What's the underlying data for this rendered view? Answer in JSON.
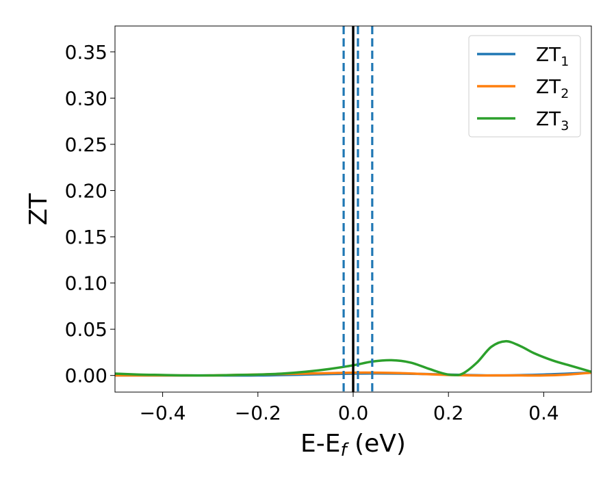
{
  "chart_data": {
    "type": "line",
    "xlabel": "E-E_f (eV)",
    "ylabel": "ZT",
    "xlim": [
      -0.5,
      0.5
    ],
    "ylim": [
      -0.018,
      0.378
    ],
    "x_ticks": [
      -0.4,
      -0.2,
      0.0,
      0.2,
      0.4
    ],
    "x_tick_labels": [
      "−0.4",
      "−0.2",
      "0.0",
      "0.2",
      "0.4"
    ],
    "y_ticks": [
      0.0,
      0.05,
      0.1,
      0.15,
      0.2,
      0.25,
      0.3,
      0.35
    ],
    "y_tick_labels": [
      "0.00",
      "0.05",
      "0.10",
      "0.15",
      "0.20",
      "0.25",
      "0.30",
      "0.35"
    ],
    "grid": false,
    "legend_position": "top-right",
    "series": [
      {
        "name": "ZT1",
        "label_main": "ZT",
        "label_sub": "1",
        "color": "#1f77b4",
        "x": [
          -0.5,
          -0.4,
          -0.3,
          -0.2,
          -0.1,
          0.0,
          0.1,
          0.2,
          0.3,
          0.4,
          0.5
        ],
        "y": [
          0.0,
          0.0,
          0.0,
          0.0,
          0.001,
          0.002,
          0.002,
          0.001,
          0.0,
          0.001,
          0.003
        ]
      },
      {
        "name": "ZT2",
        "label_main": "ZT",
        "label_sub": "2",
        "color": "#ff7f0e",
        "x": [
          -0.5,
          -0.45,
          -0.4,
          -0.35,
          -0.3,
          -0.25,
          -0.2,
          -0.15,
          -0.1,
          -0.05,
          0.0,
          0.05,
          0.1,
          0.15,
          0.2,
          0.25,
          0.3,
          0.35,
          0.4,
          0.45,
          0.5
        ],
        "y": [
          0.0,
          0.0,
          0.0,
          0.0,
          0.0,
          0.0005,
          0.001,
          0.0015,
          0.002,
          0.0025,
          0.003,
          0.003,
          0.0025,
          0.0015,
          0.0005,
          0.0,
          0.0,
          0.0,
          0.0,
          0.001,
          0.003
        ]
      },
      {
        "name": "ZT3",
        "label_main": "ZT",
        "label_sub": "3",
        "color": "#2ca02c",
        "x": [
          -0.5,
          -0.45,
          -0.4,
          -0.35,
          -0.3,
          -0.25,
          -0.2,
          -0.15,
          -0.1,
          -0.05,
          0.0,
          0.04,
          0.08,
          0.12,
          0.16,
          0.19,
          0.21,
          0.23,
          0.26,
          0.29,
          0.32,
          0.35,
          0.38,
          0.42,
          0.46,
          0.5
        ],
        "y": [
          0.002,
          0.001,
          0.0005,
          0.0,
          0.0,
          0.0005,
          0.001,
          0.002,
          0.004,
          0.007,
          0.011,
          0.015,
          0.0165,
          0.014,
          0.007,
          0.002,
          0.0005,
          0.002,
          0.014,
          0.031,
          0.037,
          0.032,
          0.024,
          0.016,
          0.01,
          0.004
        ]
      }
    ],
    "vertical_lines": [
      {
        "x": 0.0,
        "style": "solid",
        "color": "#000000"
      },
      {
        "x": -0.02,
        "style": "dashed",
        "color": "#1f77b4"
      },
      {
        "x": 0.01,
        "style": "dashed",
        "color": "#1f77b4"
      },
      {
        "x": 0.04,
        "style": "dashed",
        "color": "#1f77b4"
      }
    ]
  }
}
